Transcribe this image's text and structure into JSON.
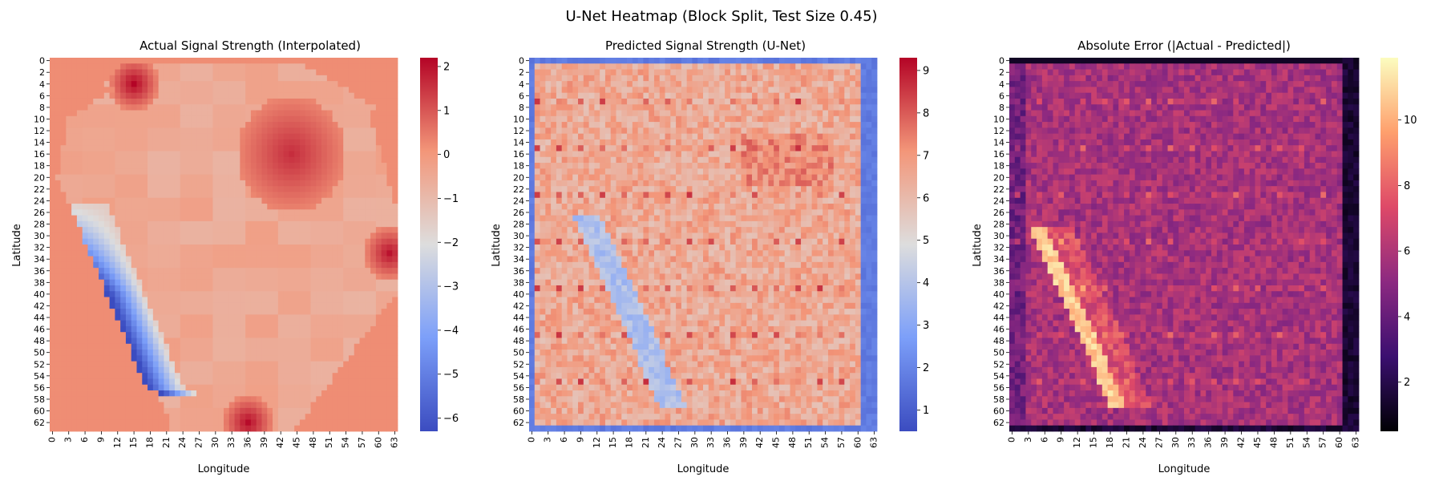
{
  "figure": {
    "suptitle": "U-Net Heatmap (Block Split, Test Size 0.45)"
  },
  "chart_data": [
    {
      "type": "heatmap",
      "title": "Actual Signal Strength (Interpolated)",
      "xlabel": "Longitude",
      "ylabel": "Latitude",
      "grid_size": [
        64,
        64
      ],
      "x_ticks": [
        "0",
        "3",
        "6",
        "9",
        "12",
        "15",
        "18",
        "21",
        "24",
        "27",
        "30",
        "33",
        "36",
        "39",
        "42",
        "45",
        "48",
        "51",
        "54",
        "57",
        "60",
        "63"
      ],
      "y_ticks": [
        "0",
        "2",
        "4",
        "6",
        "8",
        "10",
        "12",
        "14",
        "16",
        "18",
        "20",
        "22",
        "24",
        "26",
        "28",
        "30",
        "32",
        "34",
        "36",
        "38",
        "40",
        "42",
        "44",
        "46",
        "48",
        "50",
        "52",
        "54",
        "56",
        "58",
        "60",
        "62"
      ],
      "colormap": "coolwarm",
      "vmin": -6.3,
      "vmax": 2.2,
      "colorbar_ticks": [
        "2",
        "1",
        "0",
        "−1",
        "−2",
        "−3",
        "−4",
        "−5",
        "−6"
      ],
      "colorbar_values": [
        2,
        1,
        0,
        -1,
        -2,
        -3,
        -4,
        -5,
        -6
      ],
      "background_value": 0.2,
      "hotspots": [
        {
          "row": 16,
          "col": 44,
          "value": 1.6
        },
        {
          "row": 33,
          "col": 62,
          "value": 2.0
        },
        {
          "row": 4,
          "col": 15,
          "value": 2.2
        },
        {
          "row": 62,
          "col": 36,
          "value": 2.1
        }
      ],
      "low_band": {
        "row_range": [
          26,
          58
        ],
        "value_min": -6.2
      }
    },
    {
      "type": "heatmap",
      "title": "Predicted Signal Strength (U-Net)",
      "xlabel": "Longitude",
      "ylabel": "Latitude",
      "grid_size": [
        64,
        64
      ],
      "x_ticks": [
        "0",
        "3",
        "6",
        "9",
        "12",
        "15",
        "18",
        "21",
        "24",
        "27",
        "30",
        "33",
        "36",
        "39",
        "42",
        "45",
        "48",
        "51",
        "54",
        "57",
        "60",
        "63"
      ],
      "y_ticks": [
        "0",
        "2",
        "4",
        "6",
        "8",
        "10",
        "12",
        "14",
        "16",
        "18",
        "20",
        "22",
        "24",
        "26",
        "28",
        "30",
        "32",
        "34",
        "36",
        "38",
        "40",
        "42",
        "44",
        "46",
        "48",
        "50",
        "52",
        "54",
        "56",
        "58",
        "60",
        "62"
      ],
      "colormap": "coolwarm",
      "vmin": 0.5,
      "vmax": 9.3,
      "colorbar_ticks": [
        "9",
        "8",
        "7",
        "6",
        "5",
        "4",
        "3",
        "2",
        "1"
      ],
      "colorbar_values": [
        9,
        8,
        7,
        6,
        5,
        4,
        3,
        2,
        1
      ],
      "typical_value": 6.5,
      "border_value": 1.5
    },
    {
      "type": "heatmap",
      "title": "Absolute Error (|Actual - Predicted|)",
      "xlabel": "Longitude",
      "ylabel": "Latitude",
      "grid_size": [
        64,
        64
      ],
      "x_ticks": [
        "0",
        "3",
        "6",
        "9",
        "12",
        "15",
        "18",
        "21",
        "24",
        "27",
        "30",
        "33",
        "36",
        "39",
        "42",
        "45",
        "48",
        "51",
        "54",
        "57",
        "60",
        "63"
      ],
      "y_ticks": [
        "0",
        "2",
        "4",
        "6",
        "8",
        "10",
        "12",
        "14",
        "16",
        "18",
        "20",
        "22",
        "24",
        "26",
        "28",
        "30",
        "32",
        "34",
        "36",
        "38",
        "40",
        "42",
        "44",
        "46",
        "48",
        "50",
        "52",
        "54",
        "56",
        "58",
        "60",
        "62"
      ],
      "colormap": "magma",
      "vmin": 0.5,
      "vmax": 11.9,
      "colorbar_ticks": [
        "10",
        "8",
        "6",
        "4",
        "2"
      ],
      "colorbar_values": [
        10,
        8,
        6,
        4,
        2
      ],
      "typical_value": 5.8,
      "diagonal_peak_value": 11.5
    }
  ]
}
